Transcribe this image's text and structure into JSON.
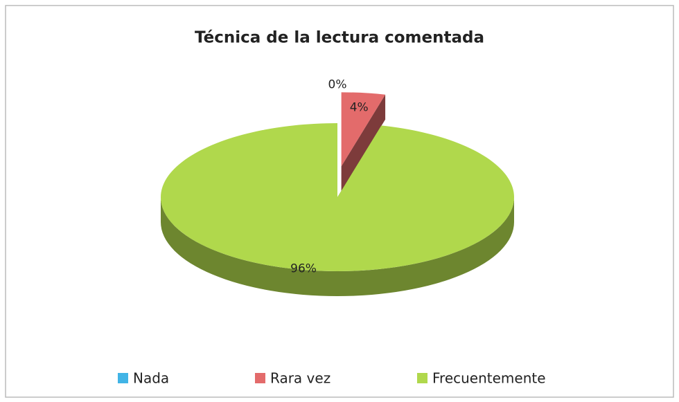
{
  "chart_data": {
    "type": "pie",
    "title": "Técnica de la lectura comentada",
    "categories": [
      "Nada",
      "Rara vez",
      "Frecuentemente"
    ],
    "values": [
      0,
      4,
      96
    ],
    "value_labels": [
      "0%",
      "4%",
      "96%"
    ],
    "colors": [
      "#41b4e6",
      "#e36b6b",
      "#b0d84c"
    ],
    "legend": "bottom"
  }
}
